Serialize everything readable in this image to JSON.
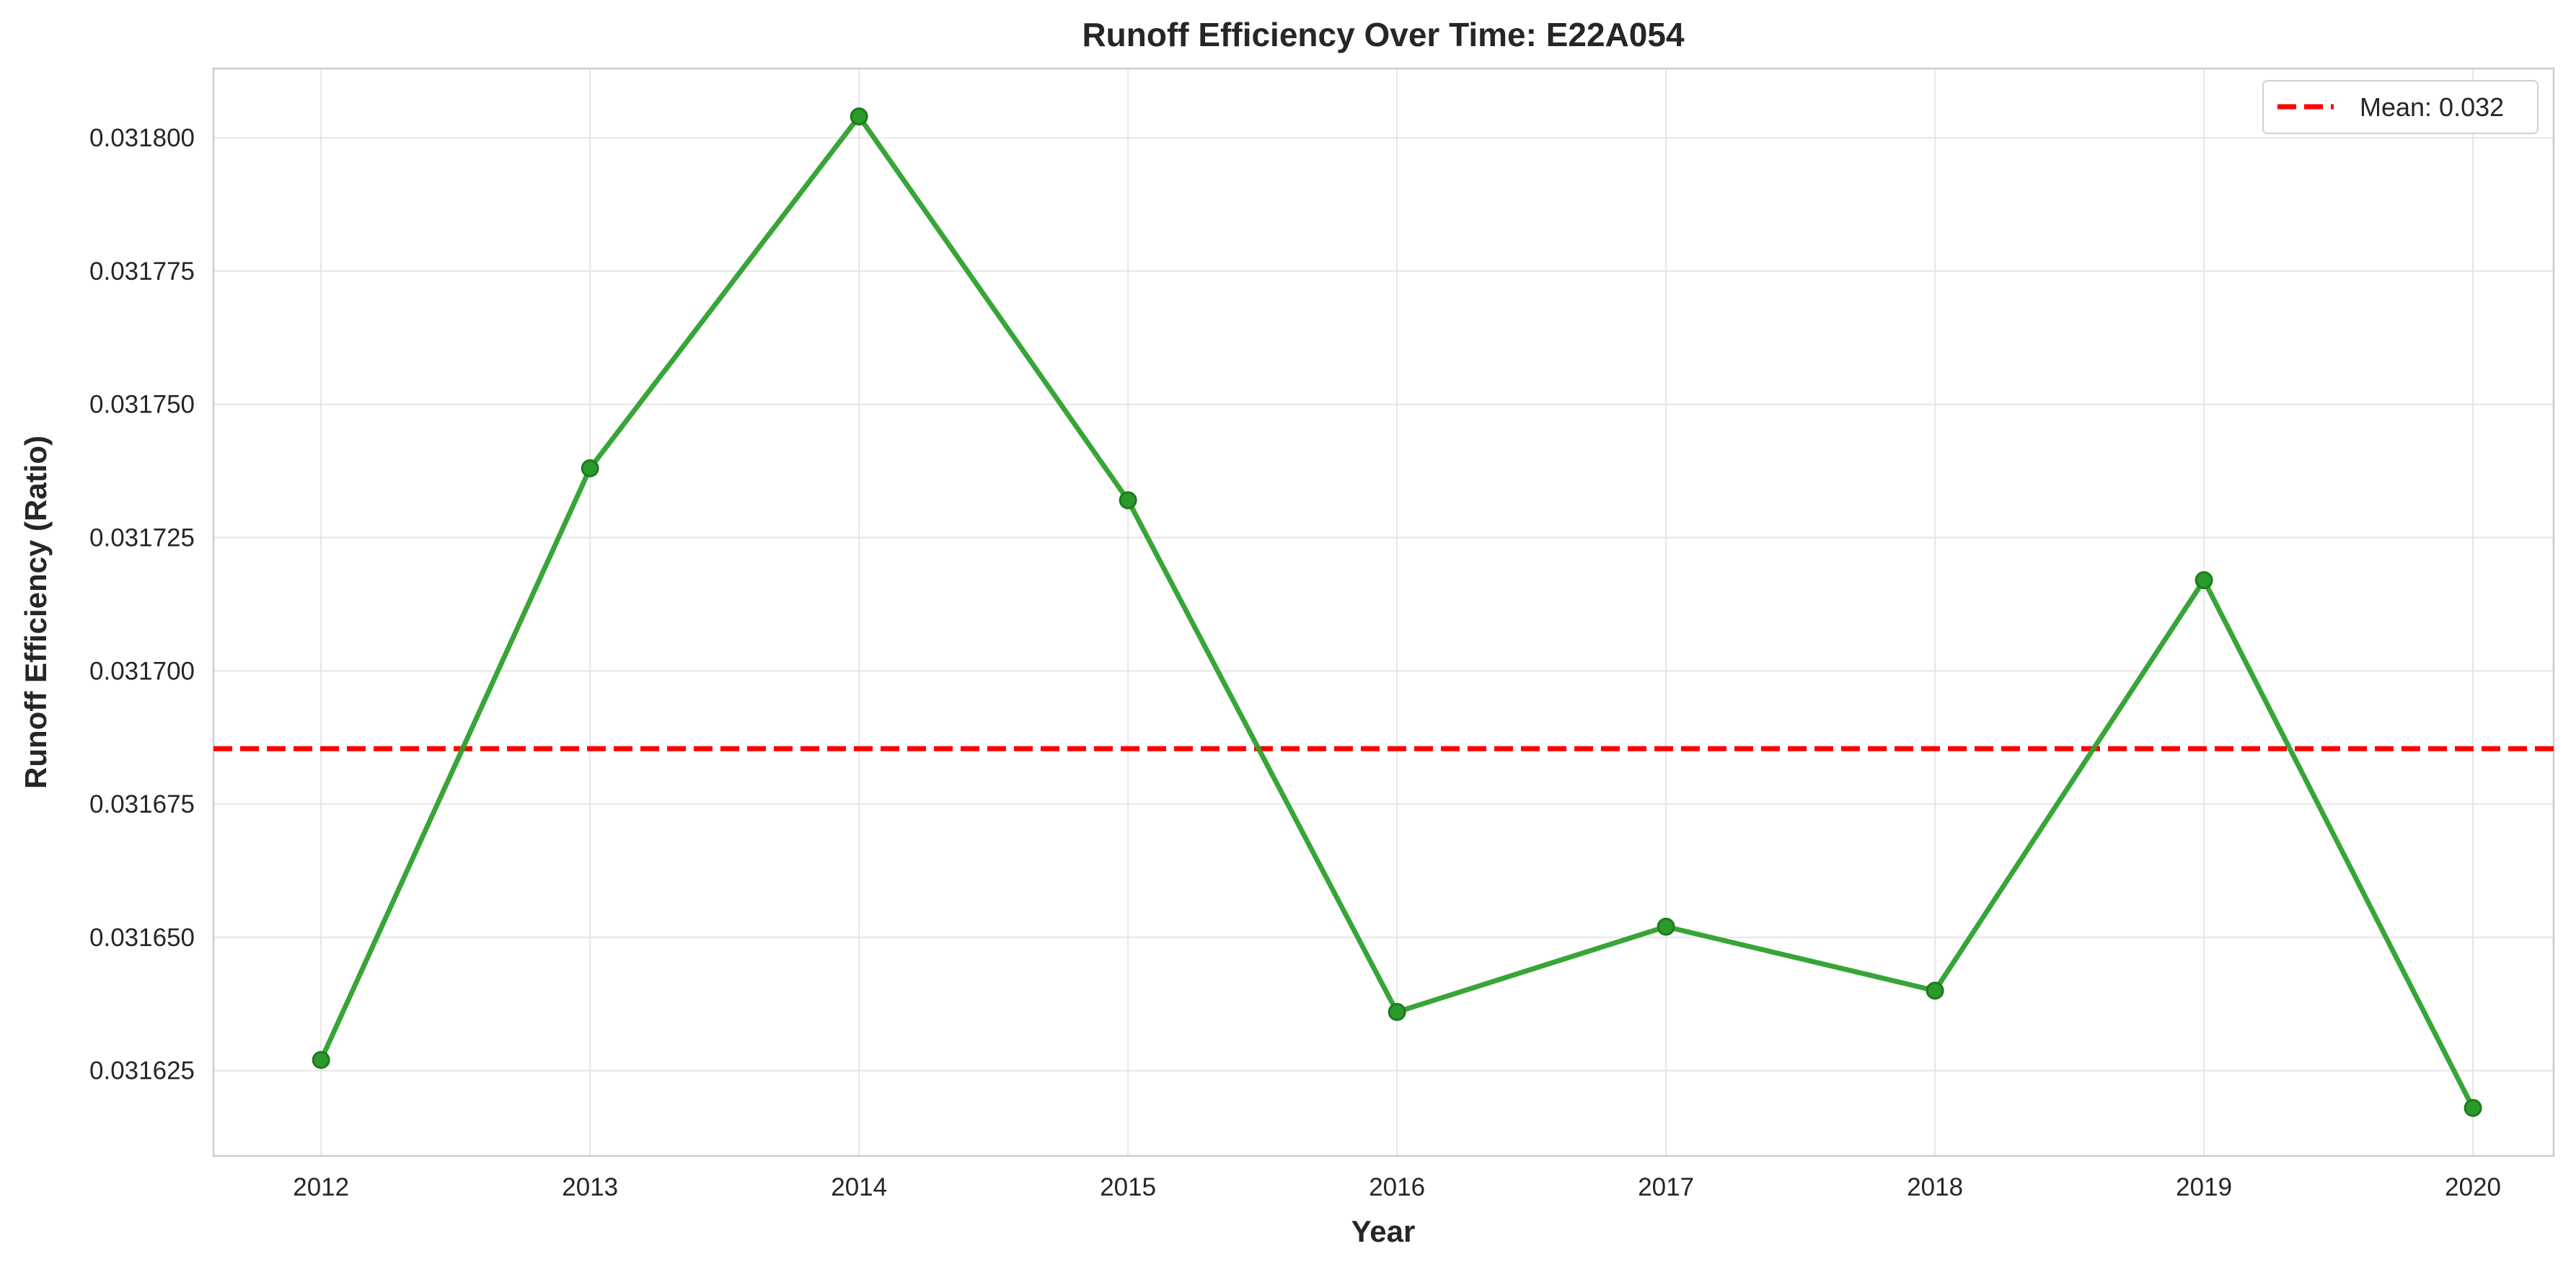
{
  "chart_data": {
    "type": "line",
    "title": "Runoff Efficiency Over Time: E22A054",
    "xlabel": "Year",
    "ylabel": "Runoff Efficiency (Ratio)",
    "x": [
      2012,
      2013,
      2014,
      2015,
      2016,
      2017,
      2018,
      2019,
      2020
    ],
    "x_tick_labels": [
      "2012",
      "2013",
      "2014",
      "2015",
      "2016",
      "2017",
      "2018",
      "2019",
      "2020"
    ],
    "series": [
      {
        "values": [
          0.031627,
          0.031738,
          0.031804,
          0.031732,
          0.031636,
          0.031652,
          0.03164,
          0.031717,
          0.031618
        ],
        "color": "#2ca02c",
        "style": "solid line with circle markers"
      }
    ],
    "reference_line": {
      "label": "Mean: 0.032",
      "value": 0.0316854,
      "color": "#ff0000",
      "style": "dashed"
    },
    "y_ticks": [
      0.031625,
      0.03165,
      0.031675,
      0.0317,
      0.031725,
      0.03175,
      0.031775,
      0.0318
    ],
    "y_tick_labels": [
      "0.031625",
      "0.031650",
      "0.031675",
      "0.031700",
      "0.031725",
      "0.031750",
      "0.031775",
      "0.031800"
    ],
    "xlim": [
      2011.6,
      2020.3
    ],
    "ylim": [
      0.031609,
      0.031813
    ],
    "grid": true,
    "legend_position": "top-right"
  }
}
